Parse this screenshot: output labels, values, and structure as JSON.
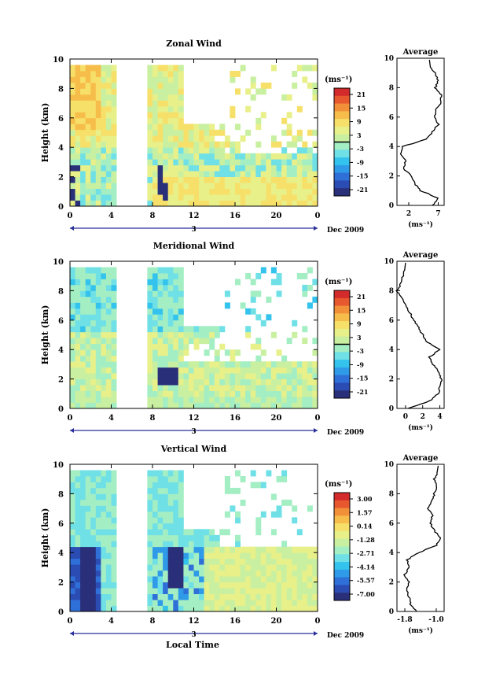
{
  "figure": {
    "date_label": "Dec 2009",
    "bottom_xlabel": "Local Time",
    "palette": [
      "#2a2f7a",
      "#2b4cb3",
      "#2f6fd8",
      "#2f9be8",
      "#33c3ec",
      "#6fe0e6",
      "#a4eec4",
      "#c9f0a0",
      "#e8f08a",
      "#f6e06a",
      "#f7bd4a",
      "#f2903a",
      "#e8582f",
      "#d32b2b"
    ]
  },
  "chart_data": [
    {
      "type": "heatmap",
      "title": "Zonal Wind",
      "ylabel": "Height (km)",
      "xlim": [
        0,
        24
      ],
      "ylim": [
        0,
        10
      ],
      "x_ticks": [
        "0",
        "4",
        "8",
        "12",
        "16",
        "20",
        "0"
      ],
      "y_ticks": [
        "0",
        "2",
        "4",
        "6",
        "8",
        "10"
      ],
      "day_marker": "3",
      "colorbar": {
        "unit": "(ms⁻¹)",
        "ticks": [
          "21",
          "15",
          "9",
          "3",
          "-3",
          "-9",
          "-15",
          "-21"
        ],
        "zero_line_value": 0
      },
      "data_gaps_hours": [
        [
          4.3,
          7.7
        ]
      ],
      "average_profile": {
        "title": "Average",
        "xlabel": "(ms⁻¹)",
        "x_ticks": [
          "2",
          "7"
        ],
        "xlim": [
          0,
          8
        ],
        "heights_km": [
          0,
          0.5,
          1,
          1.5,
          2,
          2.5,
          3,
          3.5,
          4,
          4.5,
          5,
          5.5,
          6,
          6.5,
          7,
          7.5,
          8,
          8.5,
          9,
          9.5
        ],
        "values": [
          6,
          7,
          4,
          3,
          2.5,
          1,
          1.5,
          0.5,
          1,
          5,
          6,
          7,
          6.5,
          6.5,
          7.5,
          7.5,
          6.5,
          7,
          6.5,
          5.5
        ]
      }
    },
    {
      "type": "heatmap",
      "title": "Meridional Wind",
      "ylabel": "Height (km)",
      "xlim": [
        0,
        24
      ],
      "ylim": [
        0,
        10
      ],
      "x_ticks": [
        "0",
        "4",
        "8",
        "12",
        "16",
        "20",
        "0"
      ],
      "y_ticks": [
        "0",
        "2",
        "4",
        "6",
        "8",
        "10"
      ],
      "day_marker": "3",
      "colorbar": {
        "unit": "(ms⁻¹)",
        "ticks": [
          "21",
          "15",
          "9",
          "3",
          "-3",
          "-9",
          "-15",
          "-21"
        ],
        "zero_line_value": 0
      },
      "data_gaps_hours": [
        [
          4.3,
          7.7
        ]
      ],
      "average_profile": {
        "title": "Average",
        "xlabel": "(ms⁻¹)",
        "x_ticks": [
          "0",
          "2",
          "4"
        ],
        "xlim": [
          -1,
          4.5
        ],
        "heights_km": [
          0,
          0.5,
          1,
          1.5,
          2,
          2.5,
          3,
          3.5,
          4,
          4.5,
          5,
          5.5,
          6,
          6.5,
          7,
          7.5,
          8,
          8.5,
          9,
          9.5
        ],
        "values": [
          0.2,
          2.8,
          3.8,
          4,
          4.2,
          3.8,
          3.2,
          2.8,
          4,
          2.5,
          2,
          1.5,
          1,
          0.5,
          0,
          -0.5,
          -1,
          -0.5,
          -0.3,
          0
        ]
      }
    },
    {
      "type": "heatmap",
      "title": "Vertical Wind",
      "ylabel": "Height (km)",
      "xlim": [
        0,
        24
      ],
      "ylim": [
        0,
        10
      ],
      "x_ticks": [
        "0",
        "4",
        "8",
        "12",
        "16",
        "20",
        "0"
      ],
      "y_ticks": [
        "0",
        "2",
        "4",
        "6",
        "8",
        "10"
      ],
      "day_marker": "3",
      "colorbar": {
        "unit": "(ms⁻¹)",
        "ticks": [
          "3.00",
          "1.57",
          "0.14",
          "-1.28",
          "-2.71",
          "-4.14",
          "-5.57",
          "-7.00"
        ],
        "zero_line_value": null
      },
      "data_gaps_hours": [
        [
          4.3,
          7.7
        ]
      ],
      "average_profile": {
        "title": "Average",
        "xlabel": "(ms⁻¹)",
        "x_ticks": [
          "-1.8",
          "-1.0"
        ],
        "xlim": [
          -2.0,
          -0.8
        ],
        "heights_km": [
          0,
          0.5,
          1,
          1.5,
          2,
          2.5,
          3,
          3.5,
          4,
          4.5,
          5,
          5.5,
          6,
          6.5,
          7,
          7.5,
          8,
          8.5,
          9,
          9.5
        ],
        "values": [
          -1.5,
          -1.65,
          -1.7,
          -1.75,
          -1.7,
          -1.8,
          -1.7,
          -1.75,
          -1.45,
          -1.0,
          -0.9,
          -1.05,
          -1.15,
          -1.1,
          -1.2,
          -1.1,
          -1.05,
          -1.0,
          -1.05,
          -0.95
        ]
      }
    }
  ]
}
